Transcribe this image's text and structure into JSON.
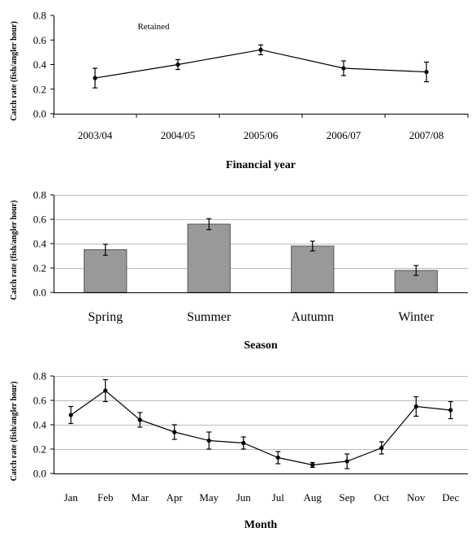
{
  "chart_data": [
    {
      "type": "line",
      "annotation": "Retained",
      "xlabel": "Financial year",
      "ylabel": "Catch rate (fish/angler hour)",
      "ylim": [
        0,
        0.8
      ],
      "yticks": [
        "0.0",
        "0.2",
        "0.4",
        "0.6",
        "0.8"
      ],
      "grid": "none",
      "categories": [
        "2003/04",
        "2004/05",
        "2005/06",
        "2006/07",
        "2007/08"
      ],
      "values": [
        0.29,
        0.4,
        0.52,
        0.37,
        0.34
      ],
      "errors": [
        0.08,
        0.04,
        0.04,
        0.06,
        0.08
      ]
    },
    {
      "type": "bar",
      "xlabel": "Season",
      "ylabel": "Catch rate (fish/angler hour)",
      "ylim": [
        0,
        0.8
      ],
      "yticks": [
        "0.0",
        "0.2",
        "0.4",
        "0.6",
        "0.8"
      ],
      "grid": "horizontal",
      "bar_color": "#999999",
      "categories": [
        "Spring",
        "Summer",
        "Autumn",
        "Winter"
      ],
      "values": [
        0.35,
        0.56,
        0.38,
        0.18
      ],
      "errors": [
        0.045,
        0.045,
        0.04,
        0.04
      ]
    },
    {
      "type": "line",
      "xlabel": "Month",
      "ylabel": "Catch rate (fish/angler hour)",
      "ylim": [
        0,
        0.8
      ],
      "yticks": [
        "0.0",
        "0.2",
        "0.4",
        "0.6",
        "0.8"
      ],
      "grid": "horizontal",
      "categories": [
        "Jan",
        "Feb",
        "Mar",
        "Apr",
        "May",
        "Jun",
        "Jul",
        "Aug",
        "Sep",
        "Oct",
        "Nov",
        "Dec"
      ],
      "values": [
        0.48,
        0.68,
        0.44,
        0.34,
        0.27,
        0.25,
        0.13,
        0.07,
        0.1,
        0.21,
        0.55,
        0.52
      ],
      "errors": [
        0.07,
        0.09,
        0.06,
        0.06,
        0.07,
        0.05,
        0.05,
        0.02,
        0.06,
        0.05,
        0.08,
        0.07
      ]
    }
  ]
}
